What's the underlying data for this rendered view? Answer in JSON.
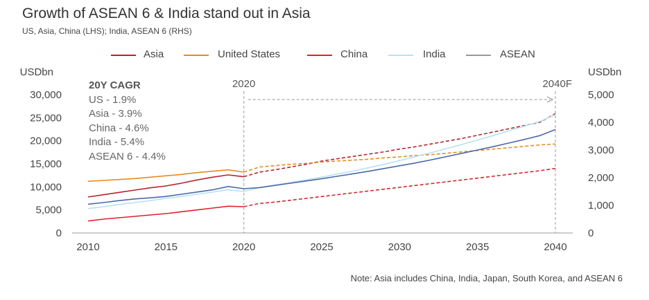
{
  "title": "Growth of ASEAN 6 & India stand out in Asia",
  "subtitle": "US, Asia, China (LHS); India, ASEAN 6 (RHS)",
  "note": "Note: Asia includes China, India, Japan, South Korea, and ASEAN 6",
  "cagr": {
    "title": "20Y CAGR",
    "lines": [
      "US - 1.9%",
      "Asia - 3.9%",
      "China - 4.6%",
      "India - 5.4%",
      "ASEAN 6 - 4.4%"
    ]
  },
  "chart_data": {
    "type": "line",
    "x": [
      2010,
      2011,
      2012,
      2013,
      2014,
      2015,
      2016,
      2017,
      2018,
      2019,
      2020,
      2021,
      2022,
      2023,
      2024,
      2025,
      2026,
      2027,
      2028,
      2029,
      2030,
      2031,
      2032,
      2033,
      2034,
      2035,
      2036,
      2037,
      2038,
      2039,
      2040
    ],
    "forecast_from": 2020,
    "left_axis": {
      "label": "USDbn",
      "ylim": [
        0,
        30000
      ],
      "ticks": [
        "0",
        "5,000",
        "10,000",
        "15,000",
        "20,000",
        "25,000",
        "30,000"
      ],
      "tick_values": [
        0,
        5000,
        10000,
        15000,
        20000,
        25000,
        30000
      ]
    },
    "right_axis": {
      "label": "USDbn",
      "ylim": [
        0,
        5000
      ],
      "ticks": [
        "0",
        "1,000",
        "2,000",
        "3,000",
        "4,000",
        "5,000"
      ],
      "tick_values": [
        0,
        1000,
        2000,
        3000,
        4000,
        5000
      ]
    },
    "x_ticks": [
      "2010",
      "2015",
      "2020",
      "2025",
      "2030",
      "2035",
      "2040"
    ],
    "x_tick_values": [
      2010,
      2015,
      2020,
      2025,
      2030,
      2035,
      2040
    ],
    "markers": [
      {
        "label": "2020",
        "x": 2020
      },
      {
        "label": "2040F",
        "x": 2040
      }
    ],
    "series": [
      {
        "name": "Asia",
        "axis": "left",
        "color": "#b5222a",
        "values": [
          7800,
          8300,
          8800,
          9300,
          9800,
          10200,
          10800,
          11500,
          12100,
          12600,
          12200,
          13200,
          13700,
          14300,
          14900,
          15600,
          16100,
          16600,
          17100,
          17600,
          18200,
          18700,
          19300,
          19900,
          20500,
          21200,
          21900,
          22600,
          23300,
          24000,
          25900
        ]
      },
      {
        "name": "United States",
        "axis": "left",
        "color": "#e8891f",
        "values": [
          11200,
          11400,
          11600,
          11800,
          12100,
          12400,
          12700,
          13100,
          13400,
          13700,
          13200,
          14300,
          14600,
          14900,
          15100,
          15400,
          15600,
          15800,
          16000,
          16300,
          16500,
          16800,
          17000,
          17300,
          17600,
          17900,
          18200,
          18500,
          18800,
          19100,
          19300
        ]
      },
      {
        "name": "China",
        "axis": "left",
        "color": "#d8232a",
        "values": [
          2600,
          3000,
          3300,
          3600,
          3900,
          4200,
          4600,
          5000,
          5400,
          5800,
          5700,
          6400,
          6700,
          7100,
          7500,
          7900,
          8300,
          8700,
          9100,
          9500,
          9900,
          10300,
          10700,
          11100,
          11500,
          11900,
          12300,
          12700,
          13100,
          13500,
          14000
        ]
      },
      {
        "name": "India",
        "axis": "right",
        "color": "#b5e1f4",
        "values": [
          880,
          950,
          1030,
          1100,
          1170,
          1250,
          1320,
          1400,
          1480,
          1560,
          1500,
          1640,
          1730,
          1820,
          1920,
          2020,
          2130,
          2240,
          2360,
          2480,
          2620,
          2760,
          2900,
          3050,
          3200,
          3360,
          3520,
          3690,
          3860,
          4030,
          4280
        ]
      },
      {
        "name": "ASEAN",
        "axis": "right",
        "color": "#4a67a8",
        "values": [
          1040,
          1100,
          1170,
          1230,
          1270,
          1320,
          1400,
          1480,
          1560,
          1680,
          1600,
          1640,
          1720,
          1800,
          1880,
          1960,
          2050,
          2140,
          2230,
          2330,
          2430,
          2530,
          2640,
          2760,
          2880,
          3000,
          3120,
          3250,
          3380,
          3520,
          3740
        ]
      }
    ],
    "legend": [
      "Asia",
      "United States",
      "China",
      "India",
      "ASEAN"
    ],
    "legend_position": "top-center"
  }
}
